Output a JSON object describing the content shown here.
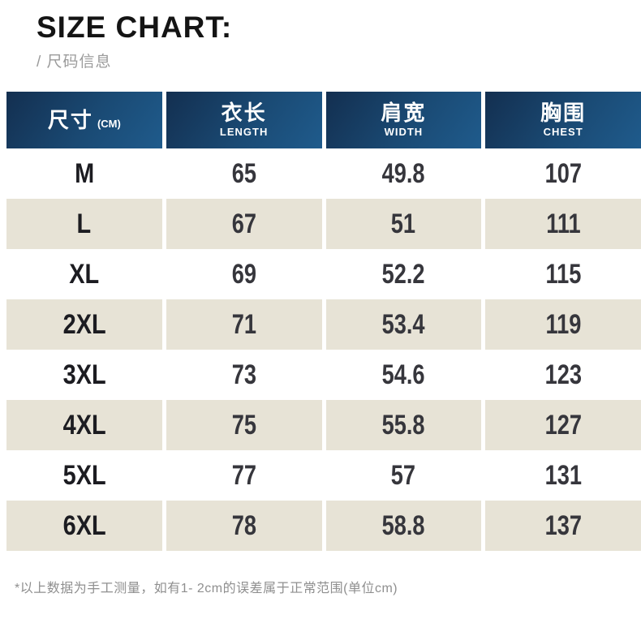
{
  "page": {
    "title": "SIZE CHART:",
    "subtitle": "/ 尺码信息",
    "footnote": "*以上数据为手工测量，如有1- 2cm的误差属于正常范围(单位cm)"
  },
  "table": {
    "header": {
      "size_label": "尺寸",
      "size_unit": "(CM)",
      "columns": [
        {
          "cn": "衣长",
          "en": "LENGTH"
        },
        {
          "cn": "肩宽",
          "en": "WIDTH"
        },
        {
          "cn": "胸围",
          "en": "CHEST"
        }
      ]
    },
    "rows": [
      {
        "size": "M",
        "length": "65",
        "width": "49.8",
        "chest": "107"
      },
      {
        "size": "L",
        "length": "67",
        "width": "51",
        "chest": "111"
      },
      {
        "size": "XL",
        "length": "69",
        "width": "52.2",
        "chest": "115"
      },
      {
        "size": "2XL",
        "length": "71",
        "width": "53.4",
        "chest": "119"
      },
      {
        "size": "3XL",
        "length": "73",
        "width": "54.6",
        "chest": "123"
      },
      {
        "size": "4XL",
        "length": "75",
        "width": "55.8",
        "chest": "127"
      },
      {
        "size": "5XL",
        "length": "77",
        "width": "57",
        "chest": "131"
      },
      {
        "size": "6XL",
        "length": "78",
        "width": "58.8",
        "chest": "137"
      }
    ]
  },
  "colors": {
    "header_gradient_start": "#132f50",
    "header_gradient_end": "#1f5b8c",
    "header_text": "#ffffff",
    "row_alt_bg": "#e7e3d6",
    "row_bg": "#ffffff",
    "size_text": "#1c1c21",
    "value_text": "#36363c",
    "title_color": "#141414",
    "subtitle_color": "#9b9b9b",
    "footnote_color": "#8f8f8f"
  }
}
